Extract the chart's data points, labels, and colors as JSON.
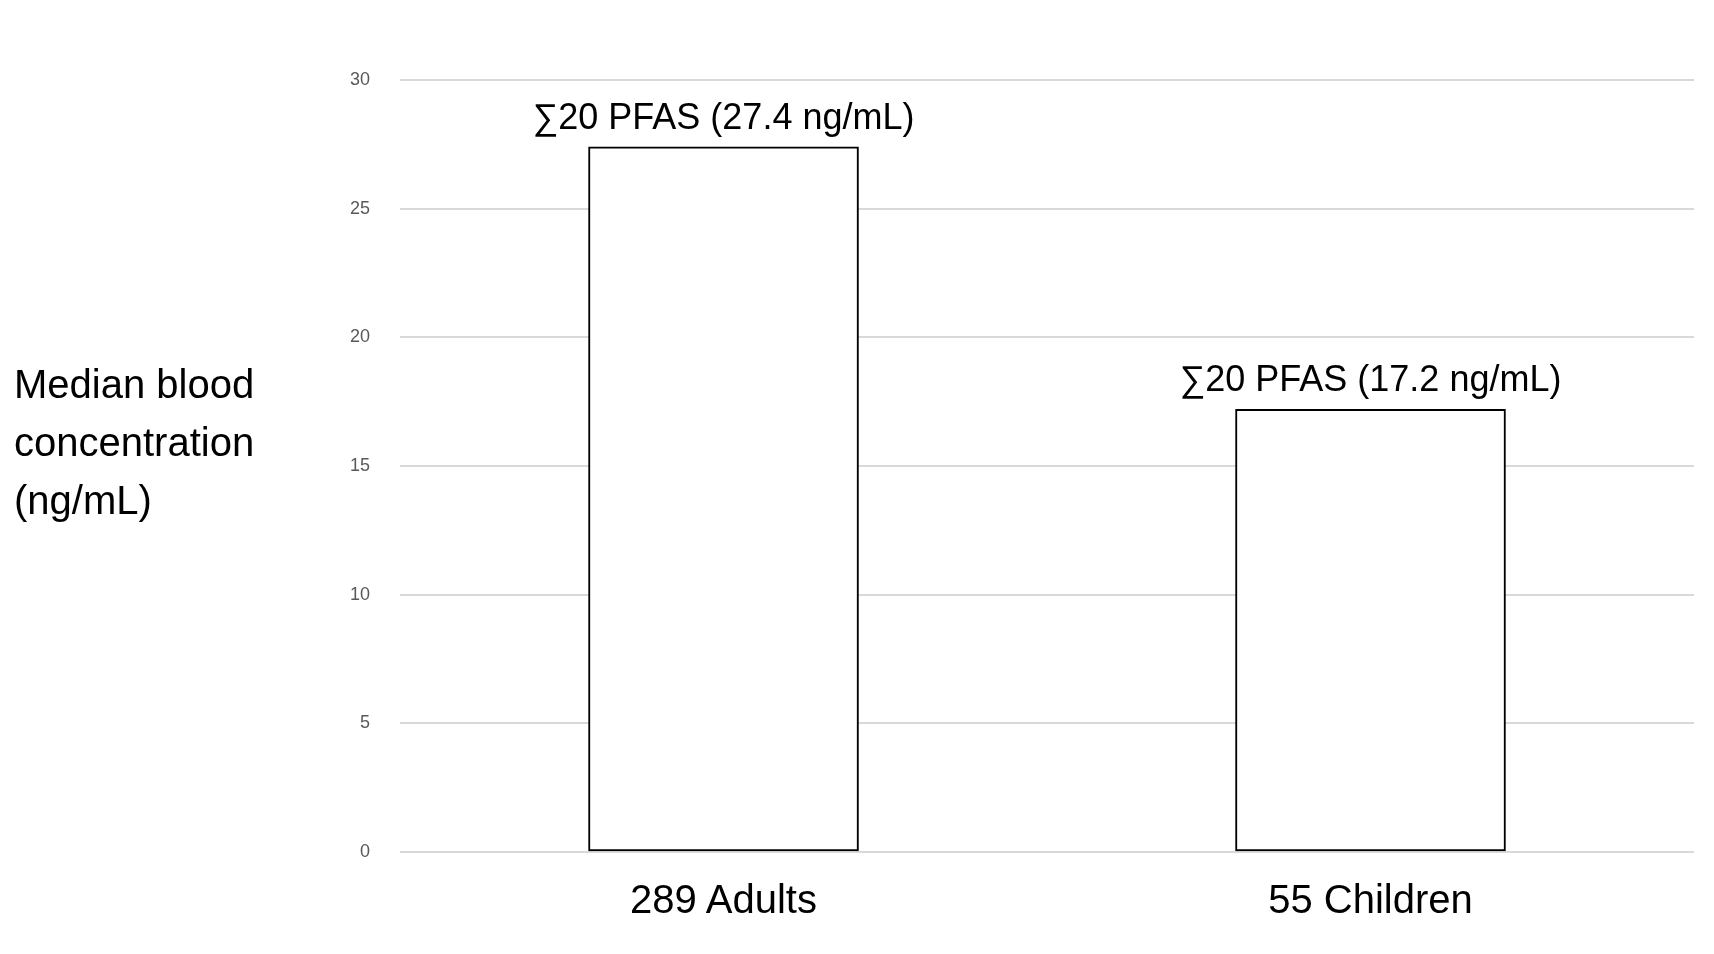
{
  "chart_data": {
    "type": "bar",
    "ylabel": "Median blood concentration (ng/mL)",
    "categories": [
      "289 Adults",
      "55 Children"
    ],
    "values": [
      27.4,
      17.2
    ],
    "value_labels": [
      "∑20 PFAS (27.4 ng/mL)",
      "∑20 PFAS (17.2 ng/mL)"
    ],
    "color": "#ffffff",
    "ylim": [
      0,
      30
    ],
    "yticks": [
      0,
      5,
      10,
      15,
      20,
      25,
      30
    ],
    "grid": "y",
    "legend": false
  }
}
